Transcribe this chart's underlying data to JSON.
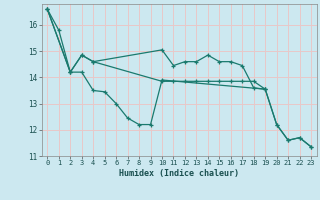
{
  "xlabel": "Humidex (Indice chaleur)",
  "background_color": "#cce8f0",
  "grid_color": "#e8c8c8",
  "line_color": "#1a7a6e",
  "xlim": [
    -0.5,
    23.5
  ],
  "ylim": [
    11.0,
    16.8
  ],
  "yticks": [
    11,
    12,
    13,
    14,
    15,
    16
  ],
  "xticks": [
    0,
    1,
    2,
    3,
    4,
    5,
    6,
    7,
    8,
    9,
    10,
    11,
    12,
    13,
    14,
    15,
    16,
    17,
    18,
    19,
    20,
    21,
    22,
    23
  ],
  "line1_x": [
    0,
    1,
    2,
    3,
    4,
    5,
    6,
    7,
    8,
    9,
    10,
    19,
    20,
    21,
    22,
    23
  ],
  "line1_y": [
    16.6,
    15.8,
    14.2,
    14.2,
    13.5,
    13.45,
    13.0,
    12.45,
    12.2,
    12.2,
    13.9,
    13.55,
    12.2,
    11.6,
    11.7,
    11.35
  ],
  "line2_x": [
    0,
    2,
    3,
    4,
    10,
    11,
    12,
    13,
    14,
    15,
    16,
    17,
    18,
    19
  ],
  "line2_y": [
    16.6,
    14.2,
    14.85,
    14.6,
    13.85,
    13.85,
    13.85,
    13.85,
    13.85,
    13.85,
    13.85,
    13.85,
    13.85,
    13.55
  ],
  "line3_x": [
    0,
    2,
    3,
    4,
    10,
    11,
    12,
    13,
    14,
    15,
    16,
    17,
    18,
    19,
    20,
    21,
    22,
    23
  ],
  "line3_y": [
    16.6,
    14.2,
    14.85,
    14.6,
    15.05,
    14.45,
    14.6,
    14.6,
    14.85,
    14.6,
    14.6,
    14.45,
    13.6,
    13.55,
    12.2,
    11.6,
    11.7,
    11.35
  ]
}
